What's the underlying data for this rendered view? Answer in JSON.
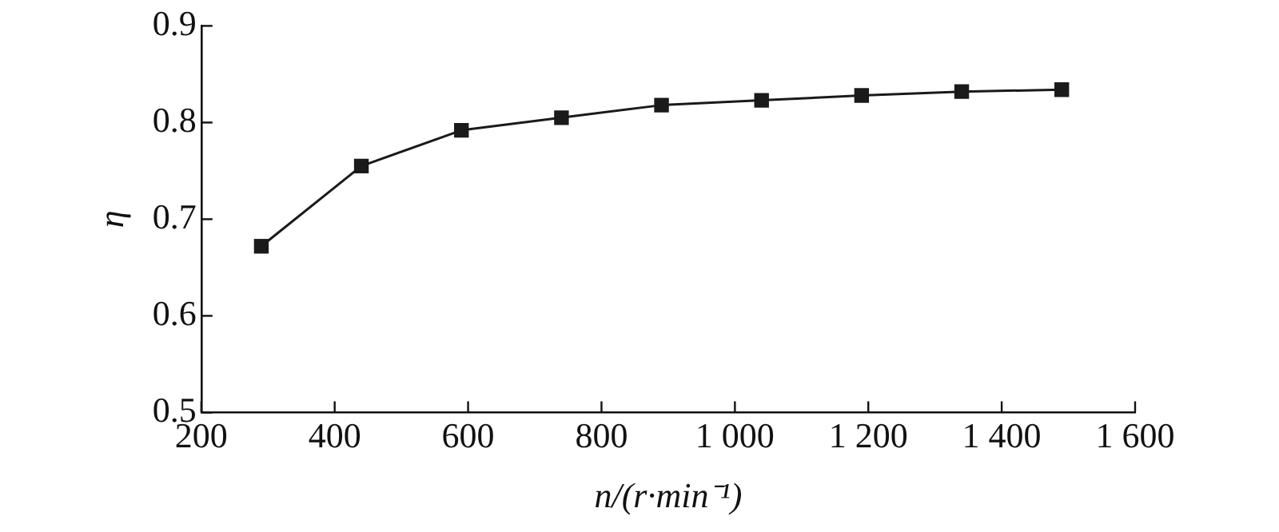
{
  "chart_data": {
    "type": "line",
    "xlabel": "n/(r·min⁻¹)",
    "ylabel": "η",
    "x": [
      290,
      440,
      590,
      740,
      890,
      1040,
      1190,
      1340,
      1490
    ],
    "series": [
      {
        "color": "#1a1a1a",
        "values": [
          0.672,
          0.755,
          0.792,
          0.805,
          0.818,
          0.823,
          0.828,
          0.832,
          0.834
        ]
      }
    ],
    "xlim": [
      200,
      1600
    ],
    "xticks": [
      200,
      400,
      600,
      800,
      {
        "value": 1000,
        "label": "1 000"
      },
      {
        "value": 1200,
        "label": "1 200"
      },
      {
        "value": 1400,
        "label": "1 400"
      },
      {
        "value": 1600,
        "label": "1 600"
      }
    ],
    "ylim": [
      0.5,
      0.9
    ],
    "yticks": [
      0.5,
      0.6,
      0.7,
      0.8,
      0.9
    ],
    "marker": "square",
    "line_style": "solid",
    "grid": false,
    "legend": false
  }
}
